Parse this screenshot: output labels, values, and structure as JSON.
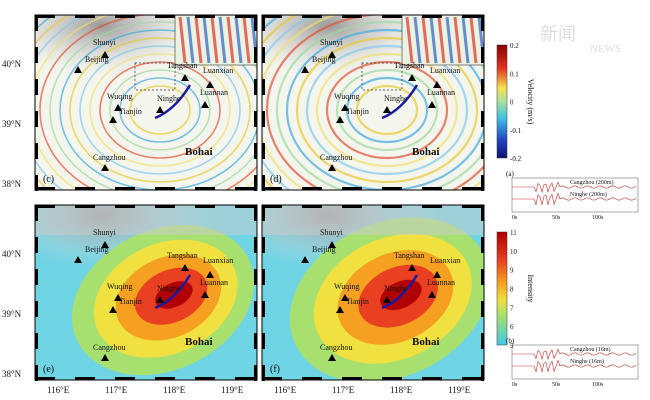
{
  "panels": [
    {
      "label": "(c)"
    },
    {
      "label": "(d)"
    },
    {
      "label": "(e)"
    },
    {
      "label": "(f)"
    }
  ],
  "cities": [
    "Beijing",
    "Shunyi",
    "Tangshan",
    "Luanxian",
    "Wuqing",
    "Ninghe",
    "Tianjin",
    "Luannan",
    "Cangzhou"
  ],
  "sea": "Bohai",
  "lat_labels": [
    "40°N",
    "39°N",
    "38°N"
  ],
  "lon_labels": [
    "116°E",
    "117°E",
    "118°E",
    "119°E"
  ],
  "velocity_bar": {
    "title": "Velocity (m/s)",
    "ticks": [
      "0.2",
      "0.1",
      "0",
      "-0.1",
      "-0.2"
    ]
  },
  "intensity_bar": {
    "title": "Intensity",
    "ticks": [
      "11",
      "10",
      "9",
      "8",
      "7",
      "6",
      "5"
    ]
  },
  "inset_a": {
    "label": "(a)",
    "traces": [
      "Cangzhou (200m)",
      "Ninghe (200m)"
    ],
    "time_ticks": [
      "0s",
      "50s",
      "100s"
    ]
  },
  "inset_b": {
    "label": "(b)",
    "traces": [
      "Cangzhou (16m)",
      "Ninghe (16m)"
    ],
    "time_ticks": [
      "0s",
      "50s",
      "100s"
    ]
  },
  "watermark": {
    "cn": "新闻",
    "en": "NEWS"
  }
}
